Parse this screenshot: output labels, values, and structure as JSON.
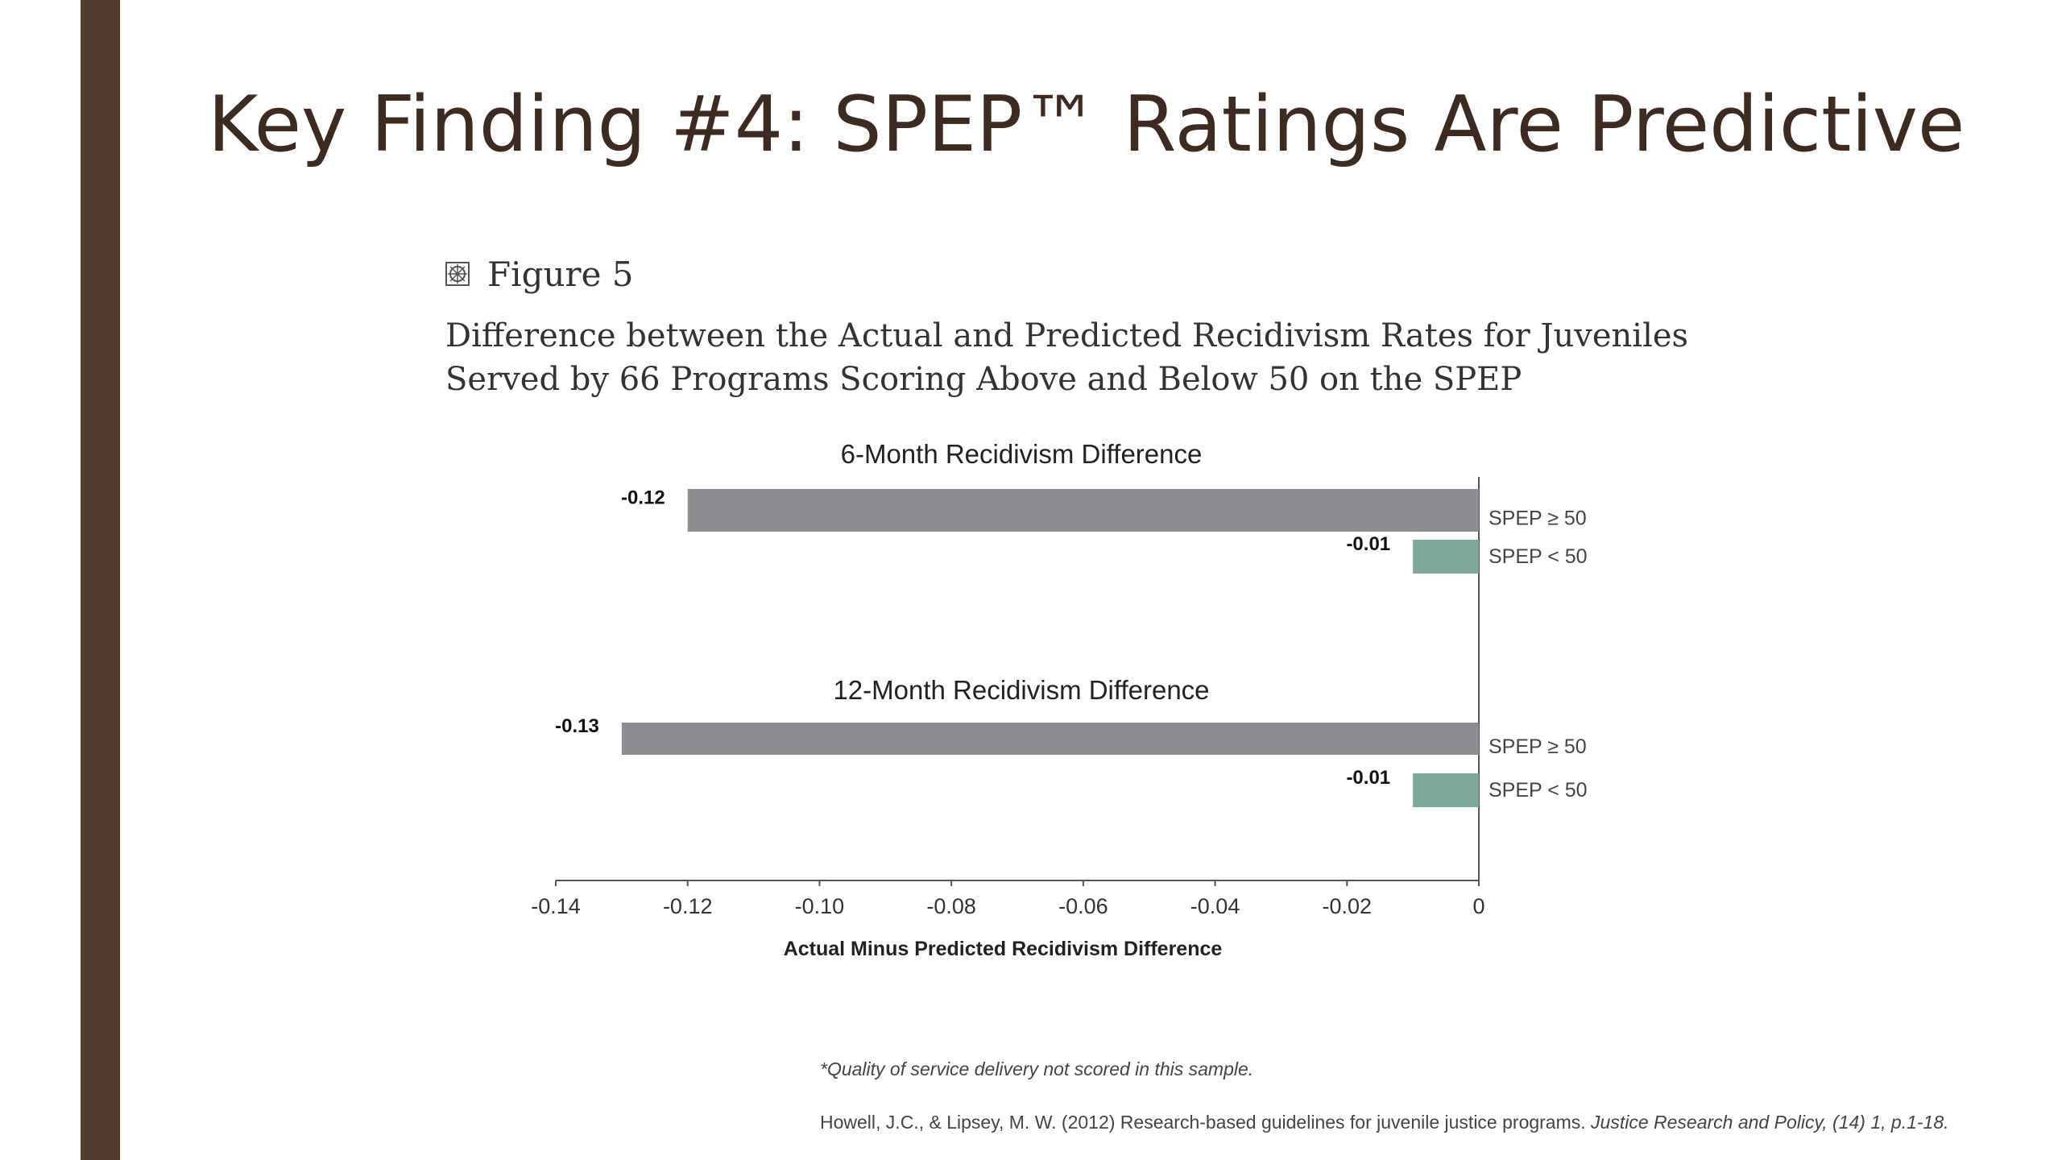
{
  "slide": {
    "title": "Key Finding #4: SPEP™ Ratings Are Predictive"
  },
  "figure": {
    "label": "Figure 5",
    "icon": "figure-emblem-icon",
    "caption_line1": "Difference between the Actual and Predicted Recidivism Rates for Juveniles",
    "caption_line2": "Served by 66 Programs Scoring Above and Below 50 on the SPEP"
  },
  "chart_data": {
    "type": "bar",
    "orientation": "horizontal",
    "xlabel": "Actual Minus Predicted Recidivism Difference",
    "xlim": [
      -0.14,
      0
    ],
    "xticks": [
      -0.14,
      -0.12,
      -0.1,
      -0.08,
      -0.06,
      -0.04,
      -0.02,
      0
    ],
    "xtick_labels": [
      "-0.14",
      "-0.12",
      "-0.10",
      "-0.08",
      "-0.06",
      "-0.04",
      "-0.02",
      "0"
    ],
    "grid": false,
    "groups": [
      {
        "title": "6-Month Recidivism Difference",
        "bars": [
          {
            "category": "SPEP ≥ 50",
            "value": -0.12,
            "label": "-0.12",
            "color": "#8c8d90"
          },
          {
            "category": "SPEP < 50",
            "value": -0.01,
            "label": "-0.01",
            "color": "#7fa89c"
          }
        ]
      },
      {
        "title": "12-Month Recidivism Difference",
        "bars": [
          {
            "category": "SPEP ≥ 50",
            "value": -0.13,
            "label": "-0.13",
            "color": "#8c8d90"
          },
          {
            "category": "SPEP < 50",
            "value": -0.01,
            "label": "-0.01",
            "color": "#7fa89c"
          }
        ]
      }
    ]
  },
  "footer": {
    "note": "*Quality of service delivery not scored in this sample.",
    "citation_plain": "Howell, J.C., & Lipsey, M. W. (2012) Research-based guidelines for juvenile justice programs. ",
    "citation_italic": "Justice Research and Policy, (14) 1, p.1-18."
  },
  "colors": {
    "accent_bar": "#523c30",
    "title": "#3d2b21",
    "bar_high": "#8c8d90",
    "bar_low": "#7fa89c"
  }
}
